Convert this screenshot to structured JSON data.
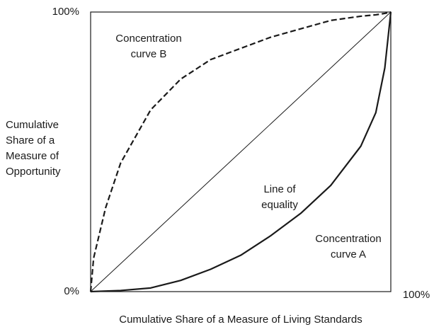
{
  "chart_data": {
    "type": "line",
    "x_label": "Cumulative Share of a Measure of Living Standards",
    "y_label": [
      "Cumulative",
      "Share of a",
      "Measure of",
      "Opportunity"
    ],
    "x": [
      0,
      1,
      5,
      10,
      20,
      30,
      40,
      50,
      60,
      70,
      80,
      90,
      95,
      98,
      100
    ],
    "series": [
      {
        "name": "Line of equality",
        "color": "#1a1a1a",
        "style": "thin",
        "values": [
          0,
          1,
          5,
          10,
          20,
          30,
          40,
          50,
          60,
          70,
          80,
          90,
          95,
          98,
          100
        ]
      },
      {
        "name": "Concentration curve A",
        "color": "#1a1a1a",
        "style": "solid",
        "values": [
          0,
          0.05,
          0.2,
          0.4,
          1.3,
          4,
          8,
          13,
          20,
          28,
          38,
          52,
          64,
          80,
          100
        ]
      },
      {
        "name": "Concentration curve B",
        "color": "#1a1a1a",
        "style": "dashed",
        "values": [
          0,
          12,
          30,
          46,
          65,
          76,
          83,
          87,
          91,
          94,
          97,
          98.5,
          99,
          99.5,
          100
        ]
      }
    ],
    "annotations": [
      [
        "Line of",
        "equality"
      ],
      [
        "Concentration",
        "curve A"
      ],
      [
        "Concentration",
        "curve B"
      ]
    ],
    "xlim": [
      0,
      100
    ],
    "ylim": [
      0,
      100
    ],
    "xticks": [
      {
        "value": 100,
        "label": "100%"
      }
    ],
    "yticks": [
      {
        "value": 0,
        "label": "0%"
      },
      {
        "value": 100,
        "label": "100%"
      }
    ],
    "grid": false
  }
}
